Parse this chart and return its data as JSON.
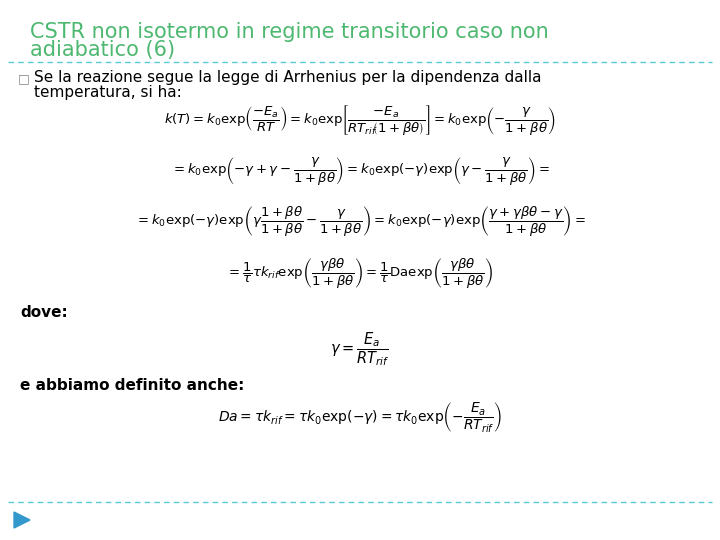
{
  "title_line1": "CSTR non isotermo in regime transitorio caso non",
  "title_line2": "adiabatico (6)",
  "title_color": "#4DB870",
  "title_fontsize": 15,
  "background_color": "#ffffff",
  "dash_line_color": "#5BC8D8",
  "bullet_color": "#888888",
  "bullet_text_line1": "Se la reazione segue la legge di Arrhenius per la dipendenza dalla",
  "bullet_text_line2": "temperatura, si ha:",
  "text_fontsize": 11,
  "dove_text": "dove:",
  "abbiamo_text": "e abbiamo definito anche:",
  "label_fontsize": 11,
  "eq_fontsize": 9.5,
  "arrow_color": "#3399CC"
}
